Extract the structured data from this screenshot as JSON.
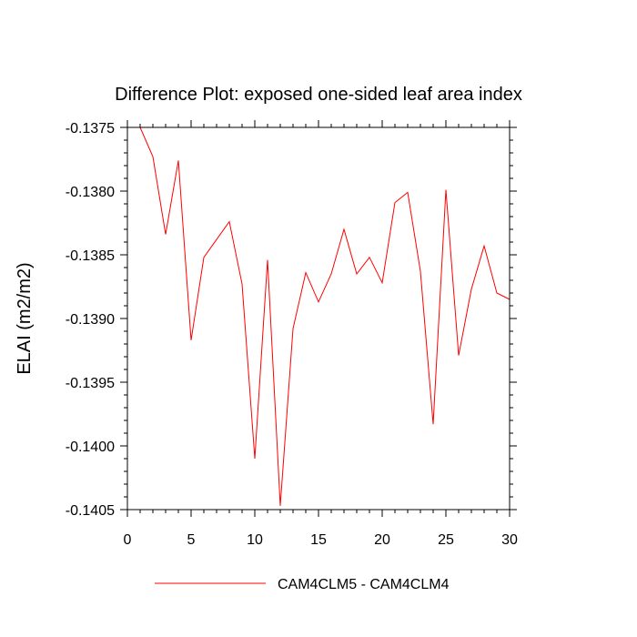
{
  "chart_data": {
    "type": "line",
    "title": "Difference Plot: exposed one-sided leaf area index",
    "xlabel": "",
    "ylabel": "ELAI  (m2/m2)",
    "xlim": [
      0,
      30
    ],
    "ylim": [
      -0.1405,
      -0.1375
    ],
    "xticks": [
      "0",
      "5",
      "10",
      "15",
      "20",
      "25",
      "30"
    ],
    "yticks": [
      "-0.1375",
      "-0.1380",
      "-0.1385",
      "-0.1390",
      "-0.1395",
      "-0.1400",
      "-0.1405"
    ],
    "grid": false,
    "legend_position": "bottom",
    "series": [
      {
        "name": "CAM4CLM5 - CAM4CLM4",
        "color": "#ff0000",
        "x": [
          1,
          2,
          3,
          4,
          5,
          6,
          7,
          8,
          9,
          10,
          11,
          12,
          13,
          14,
          15,
          16,
          17,
          18,
          19,
          20,
          21,
          22,
          23,
          24,
          25,
          26,
          27,
          28,
          29,
          30
        ],
        "y": [
          -0.1375,
          -0.13773,
          -0.13834,
          -0.13776,
          -0.13917,
          -0.13852,
          -0.13838,
          -0.13824,
          -0.13873,
          -0.1401,
          -0.13854,
          -0.14047,
          -0.13908,
          -0.13864,
          -0.13887,
          -0.13865,
          -0.1383,
          -0.13865,
          -0.13852,
          -0.13872,
          -0.13809,
          -0.13801,
          -0.13863,
          -0.13983,
          -0.13799,
          -0.13929,
          -0.13877,
          -0.13843,
          -0.1388,
          -0.13885
        ]
      }
    ]
  }
}
